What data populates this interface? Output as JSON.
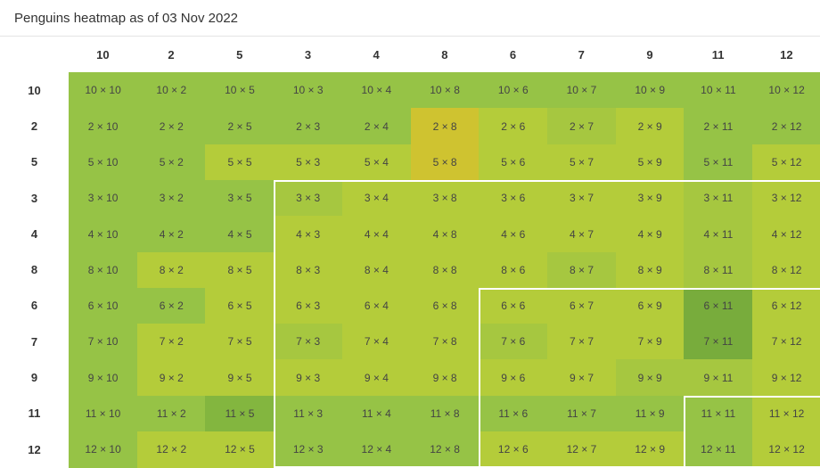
{
  "header": {
    "title": "Penguins heatmap as of 03 Nov 2022"
  },
  "chart_data": {
    "type": "heatmap",
    "title": "",
    "x_labels": [
      "10",
      "2",
      "5",
      "3",
      "4",
      "8",
      "6",
      "7",
      "9",
      "11",
      "12"
    ],
    "y_labels": [
      "10",
      "2",
      "5",
      "3",
      "4",
      "8",
      "6",
      "7",
      "9",
      "11",
      "12"
    ],
    "cell_text_format": "{row} × {col}",
    "palette": {
      "A": "#8fbe45",
      "B": "#96c346",
      "C": "#b4cc3a",
      "D": "#a6c740",
      "E": "#cfc330",
      "F": "#78ac3c",
      "G": "#83b63f"
    },
    "matrix": [
      [
        "B",
        "B",
        "B",
        "B",
        "B",
        "B",
        "B",
        "B",
        "B",
        "B",
        "B"
      ],
      [
        "B",
        "B",
        "B",
        "B",
        "B",
        "E",
        "C",
        "D",
        "C",
        "B",
        "B"
      ],
      [
        "B",
        "B",
        "C",
        "C",
        "C",
        "E",
        "C",
        "C",
        "C",
        "B",
        "C"
      ],
      [
        "B",
        "B",
        "B",
        "D",
        "C",
        "C",
        "C",
        "C",
        "C",
        "D",
        "C"
      ],
      [
        "B",
        "B",
        "B",
        "C",
        "C",
        "C",
        "C",
        "C",
        "C",
        "D",
        "C"
      ],
      [
        "B",
        "C",
        "C",
        "C",
        "C",
        "C",
        "C",
        "D",
        "C",
        "D",
        "C"
      ],
      [
        "B",
        "B",
        "C",
        "C",
        "C",
        "C",
        "C",
        "C",
        "C",
        "F",
        "C"
      ],
      [
        "B",
        "C",
        "C",
        "D",
        "C",
        "C",
        "D",
        "C",
        "C",
        "F",
        "C"
      ],
      [
        "B",
        "C",
        "C",
        "C",
        "C",
        "C",
        "C",
        "C",
        "D",
        "D",
        "C"
      ],
      [
        "B",
        "B",
        "G",
        "B",
        "B",
        "B",
        "B",
        "B",
        "B",
        "B",
        "C"
      ],
      [
        "B",
        "C",
        "C",
        "B",
        "B",
        "B",
        "C",
        "C",
        "C",
        "B",
        "C"
      ]
    ],
    "outlined_blocks": [
      {
        "from_row": 3,
        "from_col": 3
      },
      {
        "from_row": 6,
        "from_col": 6
      },
      {
        "from_row": 9,
        "from_col": 9
      }
    ],
    "legend": "none",
    "grid": false
  }
}
